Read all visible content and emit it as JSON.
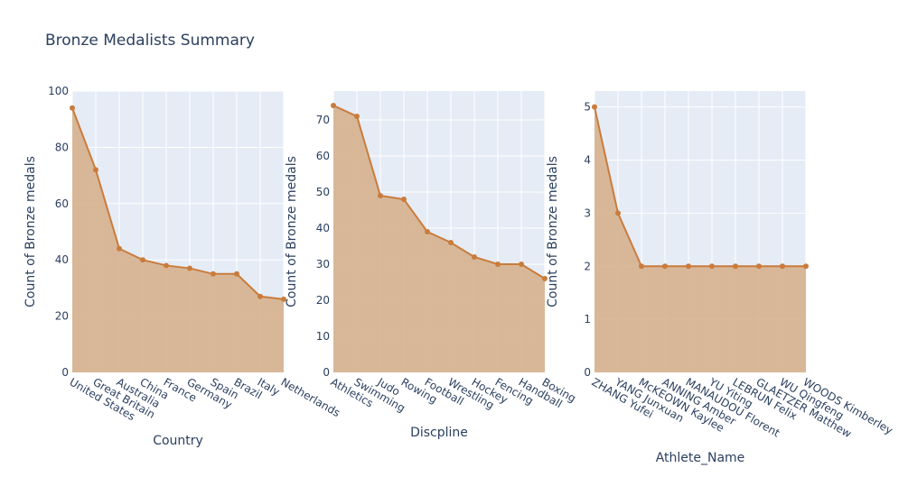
{
  "title": "Bronze Medalists Summary",
  "colors": {
    "line": "#c97c3c",
    "fill": "#d7b28f",
    "plot_bg": "#e5ecf6",
    "grid": "#ffffff",
    "text": "#2a3f5f"
  },
  "chart_data": [
    {
      "type": "area",
      "categories": [
        "United States",
        "Great Britain",
        "Australia",
        "China",
        "France",
        "Germany",
        "Spain",
        "Brazil",
        "Italy",
        "Netherlands"
      ],
      "values": [
        94,
        72,
        44,
        40,
        38,
        37,
        35,
        35,
        27,
        26
      ],
      "xlabel": "Country",
      "ylabel": "Count of Bronze medals",
      "ylim": [
        0,
        100
      ],
      "yticks": [
        0,
        20,
        40,
        60,
        80,
        100
      ]
    },
    {
      "type": "area",
      "categories": [
        "Athletics",
        "Swimming",
        "Judo",
        "Rowing",
        "Football",
        "Wrestling",
        "Hockey",
        "Fencing",
        "Handball",
        "Boxing"
      ],
      "values": [
        74,
        71,
        49,
        48,
        39,
        36,
        32,
        30,
        30,
        26
      ],
      "xlabel": "Discpline",
      "ylabel": "Count of Bronze medals",
      "ylim": [
        0,
        78
      ],
      "yticks": [
        0,
        10,
        20,
        30,
        40,
        50,
        60,
        70
      ]
    },
    {
      "type": "area",
      "categories": [
        "ZHANG Yufei",
        "YANG Junxuan",
        "McKEOWN Kaylee",
        "ANNING Amber",
        "MANAUDOU Florent",
        "YU Yiting",
        "LEBRUN Felix",
        "GLAETZER Matthew",
        "WU Qingfeng",
        "WOODS Kimberley"
      ],
      "values": [
        5,
        3,
        2,
        2,
        2,
        2,
        2,
        2,
        2,
        2
      ],
      "xlabel": "Athlete_Name",
      "ylabel": "Count of Bronze medals",
      "ylim": [
        0,
        5.3
      ],
      "yticks": [
        0,
        1,
        2,
        3,
        4,
        5
      ]
    }
  ]
}
